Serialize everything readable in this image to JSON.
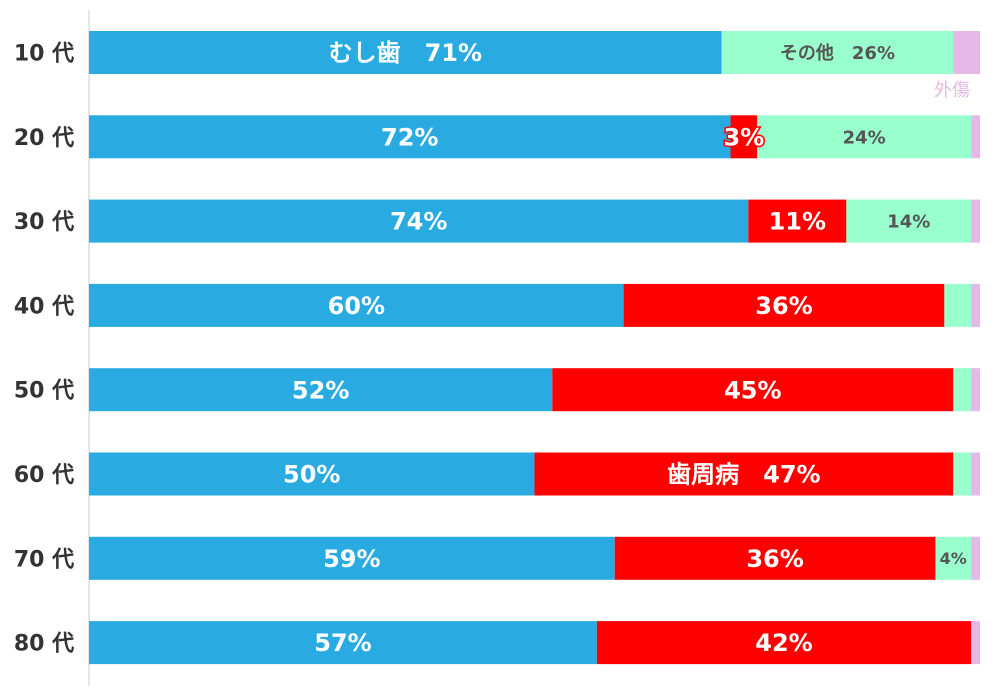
{
  "chart_data": {
    "type": "bar",
    "orientation": "horizontal",
    "stacked": true,
    "percent_scale": true,
    "categories": [
      "10 代",
      "20 代",
      "30 代",
      "40 代",
      "50 代",
      "60 代",
      "70 代",
      "80 代"
    ],
    "series": [
      {
        "name": "むし歯",
        "color": "#29abe2",
        "values": [
          71,
          72,
          74,
          60,
          52,
          50,
          59,
          57
        ]
      },
      {
        "name": "歯周病",
        "color": "#ff0000",
        "values": [
          0,
          3,
          11,
          36,
          45,
          47,
          36,
          42
        ]
      },
      {
        "name": "その他",
        "color": "#99ffcc",
        "values": [
          26,
          24,
          14,
          3,
          2,
          2,
          4,
          0
        ]
      },
      {
        "name": "外傷",
        "color": "#e6b8e8",
        "values": [
          3,
          1,
          1,
          1,
          1,
          1,
          1,
          1
        ]
      }
    ],
    "data_labels": [
      [
        {
          "series": 0,
          "text": "むし歯　71%"
        },
        {
          "series": 2,
          "text": "その他　26%"
        },
        {
          "series": 3,
          "text": "外傷",
          "position": "below-right"
        }
      ],
      [
        {
          "series": 0,
          "text": "72%"
        },
        {
          "series": 1,
          "text": "3%",
          "outlined": true
        },
        {
          "series": 2,
          "text": "24%"
        }
      ],
      [
        {
          "series": 0,
          "text": "74%"
        },
        {
          "series": 1,
          "text": "11%"
        },
        {
          "series": 2,
          "text": "14%"
        }
      ],
      [
        {
          "series": 0,
          "text": "60%"
        },
        {
          "series": 1,
          "text": "36%"
        }
      ],
      [
        {
          "series": 0,
          "text": "52%"
        },
        {
          "series": 1,
          "text": "45%"
        }
      ],
      [
        {
          "series": 0,
          "text": "50%"
        },
        {
          "series": 1,
          "text": "歯周病　47%"
        }
      ],
      [
        {
          "series": 0,
          "text": "59%"
        },
        {
          "series": 1,
          "text": "36%"
        },
        {
          "series": 2,
          "text": "4%"
        }
      ],
      [
        {
          "series": 0,
          "text": "57%"
        },
        {
          "series": 1,
          "text": "42%"
        }
      ]
    ],
    "label_colors": {
      "on_dark": "#ffffff",
      "on_light": "#555555",
      "outside": "#e6b8e8"
    },
    "xlim": [
      0,
      100
    ],
    "grid": false,
    "legend": "none"
  }
}
